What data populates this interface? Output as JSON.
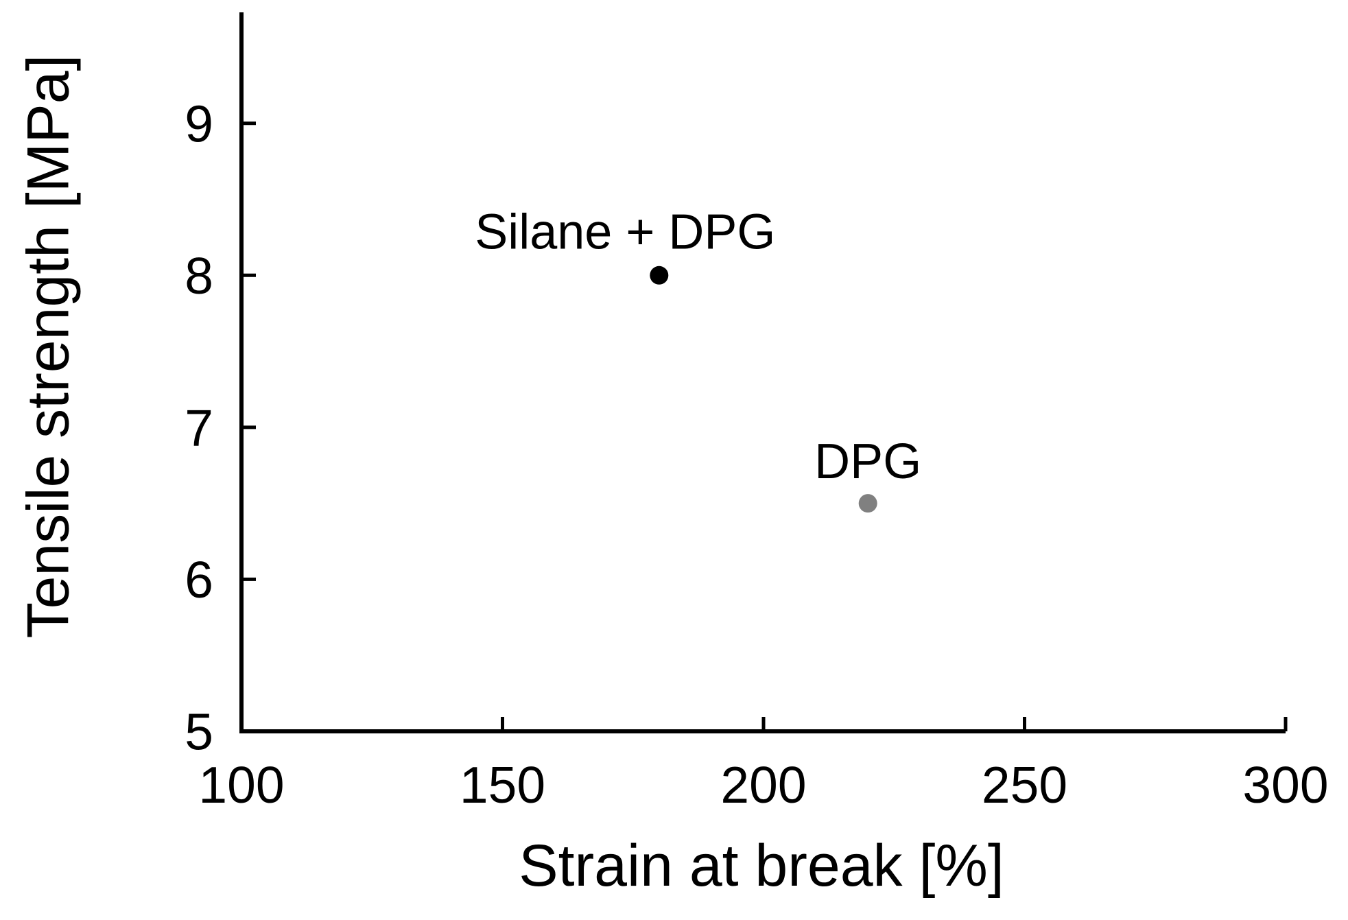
{
  "chart_data": {
    "type": "scatter",
    "title": "",
    "xlabel": "Strain at break [%]",
    "ylabel": "Tensile strength [MPa]",
    "xlim": [
      100,
      300
    ],
    "ylim": [
      5,
      9.73
    ],
    "xticks": [
      100,
      150,
      200,
      250,
      300
    ],
    "yticks": [
      5,
      6,
      7,
      8,
      9
    ],
    "grid": false,
    "legend": "none",
    "axis_color": "#000000",
    "background_color": "#ffffff",
    "marker_diameter_px": 27,
    "points": [
      {
        "label": "Silane + DPG",
        "x": 180,
        "y": 8.0,
        "color": "#000000"
      },
      {
        "label": "DPG",
        "x": 220,
        "y": 6.5,
        "color": "#808080"
      }
    ],
    "annotations": [
      {
        "text": "Silane + DPG",
        "x": 173.5,
        "y": 8.29,
        "color": "#000000"
      },
      {
        "text": "DPG",
        "x": 220.0,
        "y": 6.78,
        "color": "#000000"
      }
    ]
  }
}
